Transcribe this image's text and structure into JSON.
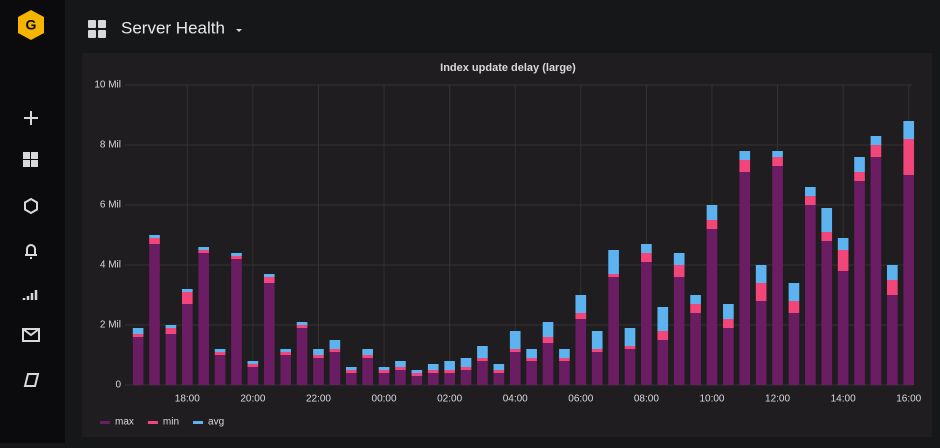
{
  "dashboard": {
    "title": "Server Health"
  },
  "chart_data": {
    "type": "stacked-bar",
    "title": "Index update delay (large)",
    "x": [
      16.5,
      17,
      17.5,
      18,
      18.5,
      19,
      19.5,
      20,
      20.5,
      21,
      21.5,
      22,
      22.5,
      23,
      23.5,
      24,
      24.5,
      25,
      25.5,
      26,
      26.5,
      27,
      27.5,
      28,
      28.5,
      29,
      29.5,
      30,
      30.5,
      31,
      31.5,
      32,
      32.5,
      33,
      33.5,
      34,
      34.5,
      35,
      35.5,
      36,
      36.5,
      37,
      37.5,
      38,
      38.5,
      39,
      39.5,
      40
    ],
    "series": [
      {
        "name": "max",
        "color": "#6b1d63",
        "values": [
          1.6,
          4.7,
          1.7,
          2.7,
          4.4,
          1.0,
          4.2,
          0.6,
          3.4,
          1.0,
          1.9,
          0.9,
          1.1,
          0.4,
          0.9,
          0.4,
          0.5,
          0.3,
          0.4,
          0.4,
          0.5,
          0.8,
          0.4,
          1.1,
          0.8,
          1.4,
          0.8,
          2.2,
          1.1,
          3.6,
          1.2,
          4.1,
          1.5,
          3.6,
          2.4,
          5.2,
          1.9,
          7.1,
          2.8,
          7.3,
          2.4,
          6.0,
          4.8,
          3.8,
          6.8,
          7.6,
          3.0,
          7.0
        ]
      },
      {
        "name": "min",
        "color": "#f2467a",
        "values": [
          0.1,
          0.2,
          0.2,
          0.4,
          0.1,
          0.1,
          0.1,
          0.1,
          0.2,
          0.1,
          0.1,
          0.1,
          0.1,
          0.1,
          0.1,
          0.1,
          0.1,
          0.1,
          0.1,
          0.1,
          0.1,
          0.1,
          0.1,
          0.1,
          0.1,
          0.2,
          0.1,
          0.2,
          0.1,
          0.1,
          0.1,
          0.3,
          0.3,
          0.4,
          0.3,
          0.3,
          0.3,
          0.4,
          0.6,
          0.3,
          0.4,
          0.3,
          0.3,
          0.7,
          0.3,
          0.4,
          0.5,
          1.2
        ]
      },
      {
        "name": "avg",
        "color": "#5cb3ef",
        "values": [
          0.2,
          0.1,
          0.1,
          0.1,
          0.1,
          0.1,
          0.1,
          0.1,
          0.1,
          0.1,
          0.1,
          0.2,
          0.3,
          0.1,
          0.2,
          0.1,
          0.2,
          0.1,
          0.2,
          0.3,
          0.3,
          0.4,
          0.2,
          0.6,
          0.3,
          0.5,
          0.3,
          0.6,
          0.6,
          0.8,
          0.6,
          0.3,
          0.8,
          0.4,
          0.3,
          0.5,
          0.5,
          0.3,
          0.6,
          0.2,
          0.6,
          0.3,
          0.8,
          0.4,
          0.5,
          0.3,
          0.5,
          0.6
        ]
      }
    ],
    "xlim": [
      16.1,
      40.1
    ],
    "xticks": [
      {
        "value": 18,
        "label": "18:00"
      },
      {
        "value": 20,
        "label": "20:00"
      },
      {
        "value": 22,
        "label": "22:00"
      },
      {
        "value": 24,
        "label": "00:00"
      },
      {
        "value": 26,
        "label": "02:00"
      },
      {
        "value": 28,
        "label": "04:00"
      },
      {
        "value": 30,
        "label": "06:00"
      },
      {
        "value": 32,
        "label": "08:00"
      },
      {
        "value": 34,
        "label": "10:00"
      },
      {
        "value": 36,
        "label": "12:00"
      },
      {
        "value": 38,
        "label": "14:00"
      },
      {
        "value": 40,
        "label": "16:00"
      }
    ],
    "ylim": [
      0,
      10
    ],
    "yticks": [
      0,
      {
        "value": 2,
        "label": "2 Mil"
      },
      {
        "value": 4,
        "label": "4 Mil"
      },
      {
        "value": 6,
        "label": "6 Mil"
      },
      {
        "value": 8,
        "label": "8 Mil"
      },
      {
        "value": 10,
        "label": "10 Mil"
      }
    ],
    "grid": true
  }
}
